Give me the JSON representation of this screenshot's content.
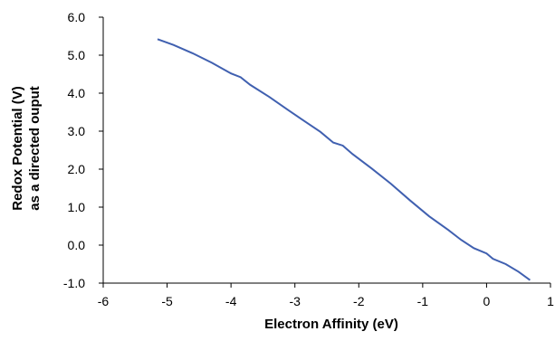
{
  "chart_data": {
    "type": "line",
    "title": "",
    "xlabel": "Electron Affinity (eV)",
    "ylabel_lines": [
      "Redox Potential (V)",
      "as a directed ouput"
    ],
    "xlim": [
      -6,
      1
    ],
    "ylim": [
      -1.0,
      6.0
    ],
    "x_ticks": [
      -6,
      -5,
      -4,
      -3,
      -2,
      -1,
      0,
      1
    ],
    "y_ticks": [
      -1.0,
      0.0,
      1.0,
      2.0,
      3.0,
      4.0,
      5.0,
      6.0
    ],
    "x_tick_labels": [
      "-6",
      "-5",
      "-4",
      "-3",
      "-2",
      "-1",
      "0",
      "1"
    ],
    "y_tick_labels": [
      "-1.0",
      "0.0",
      "1.0",
      "2.0",
      "3.0",
      "4.0",
      "5.0",
      "6.0"
    ],
    "grid": false,
    "line_color": "#4060b0",
    "series": [
      {
        "x": [
          -5.15,
          -4.9,
          -4.6,
          -4.3,
          -4.0,
          -3.85,
          -3.7,
          -3.4,
          -3.1,
          -2.9,
          -2.6,
          -2.4,
          -2.25,
          -2.1,
          -1.8,
          -1.5,
          -1.2,
          -0.9,
          -0.6,
          -0.4,
          -0.2,
          0.0,
          0.1,
          0.3,
          0.5,
          0.68
        ],
        "y": [
          5.42,
          5.27,
          5.05,
          4.8,
          4.52,
          4.42,
          4.22,
          3.9,
          3.55,
          3.32,
          2.98,
          2.7,
          2.62,
          2.4,
          2.02,
          1.62,
          1.18,
          0.76,
          0.4,
          0.14,
          -0.08,
          -0.22,
          -0.36,
          -0.5,
          -0.7,
          -0.92
        ]
      }
    ]
  }
}
